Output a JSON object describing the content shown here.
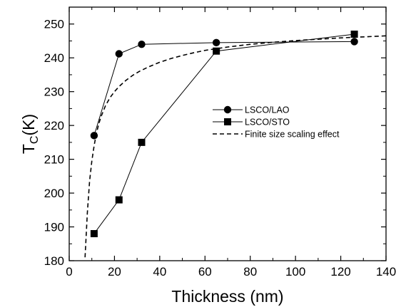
{
  "chart_data": {
    "type": "line",
    "xlabel": "Thickness (nm)",
    "ylabel": {
      "main": "T",
      "sub": "C",
      "suffix": "(K)"
    },
    "xlim": [
      0,
      140
    ],
    "ylim": [
      180,
      255
    ],
    "x_ticks": [
      0,
      20,
      40,
      60,
      80,
      100,
      120,
      140
    ],
    "y_ticks": [
      180,
      190,
      200,
      210,
      220,
      230,
      240,
      250
    ],
    "grid": false,
    "legend_position": "center-right",
    "series": [
      {
        "name": "LSCO/LAO",
        "marker": "circle",
        "line": "solid",
        "color": "#000000",
        "x": [
          11,
          22,
          32,
          65,
          126
        ],
        "y": [
          217,
          241.2,
          244,
          244.5,
          244.8
        ]
      },
      {
        "name": "LSCO/STO",
        "marker": "square",
        "line": "solid",
        "color": "#000000",
        "x": [
          11,
          22,
          32,
          65,
          126
        ],
        "y": [
          188,
          198,
          215,
          242,
          247
        ]
      },
      {
        "name": "Finite size scaling effect",
        "marker": "none",
        "line": "dashed",
        "color": "#000000",
        "x": [
          7,
          8,
          9,
          10,
          11,
          12,
          13,
          14,
          16,
          18,
          20,
          22,
          25,
          28,
          31,
          35,
          40,
          45,
          50,
          55,
          60,
          70,
          80,
          90,
          100,
          110,
          120,
          130,
          140
        ],
        "y": [
          181,
          194,
          203.5,
          209.5,
          214,
          217.6,
          220.3,
          222.5,
          225.8,
          228.2,
          230,
          231.5,
          233.3,
          234.8,
          236,
          237.3,
          238.7,
          239.8,
          240.7,
          241.5,
          242.2,
          243.2,
          244,
          244.6,
          245.1,
          245.5,
          245.9,
          246.2,
          246.5
        ]
      }
    ]
  }
}
